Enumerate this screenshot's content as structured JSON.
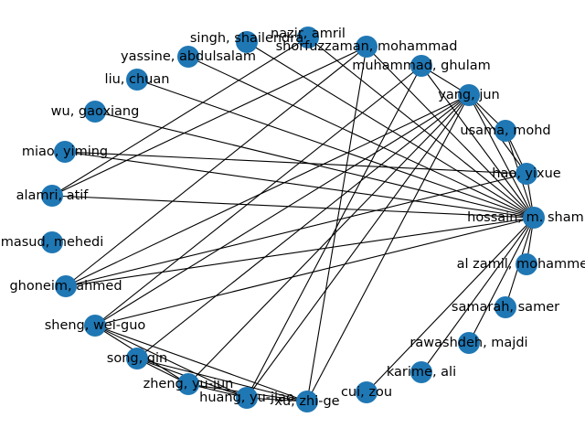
{
  "colors": {
    "node": "#1f77b4",
    "edge": "#000000",
    "background": "#ffffff"
  },
  "chart_data": {
    "type": "network",
    "nodes": [
      {
        "id": "hossain",
        "label": "hossain, m. shamim"
      },
      {
        "id": "hao",
        "label": "hao, yixue"
      },
      {
        "id": "usama",
        "label": "usama, mohd"
      },
      {
        "id": "yang",
        "label": "yang, jun"
      },
      {
        "id": "muhammad",
        "label": "muhammad, ghulam"
      },
      {
        "id": "shorfuzzaman",
        "label": "shorfuzzaman, mohammad"
      },
      {
        "id": "nazir",
        "label": "nazir, amril"
      },
      {
        "id": "singh",
        "label": "singh, shailendra"
      },
      {
        "id": "yassine",
        "label": "yassine, abdulsalam"
      },
      {
        "id": "liu",
        "label": "liu, chuan"
      },
      {
        "id": "wu",
        "label": "wu, gaoxiang"
      },
      {
        "id": "miao",
        "label": "miao, yiming"
      },
      {
        "id": "alamri",
        "label": "alamri, atif"
      },
      {
        "id": "masud",
        "label": "masud, mehedi"
      },
      {
        "id": "ghoneim",
        "label": "ghoneim, ahmed"
      },
      {
        "id": "sheng",
        "label": "sheng, wei-guo"
      },
      {
        "id": "song",
        "label": "song, qin"
      },
      {
        "id": "zheng",
        "label": "zheng, yu-jun"
      },
      {
        "id": "huang",
        "label": "huang, yu-jiao"
      },
      {
        "id": "xu",
        "label": "xu, zhi-ge"
      },
      {
        "id": "cui",
        "label": "cui, zou"
      },
      {
        "id": "karime",
        "label": "karime, ali"
      },
      {
        "id": "rawashdeh",
        "label": "rawashdeh, majdi"
      },
      {
        "id": "samarah",
        "label": "samarah, samer"
      },
      {
        "id": "alzamil",
        "label": "al zamil, mohammed"
      }
    ],
    "edges": [
      [
        "hossain",
        "hao"
      ],
      [
        "hossain",
        "usama"
      ],
      [
        "hossain",
        "yang"
      ],
      [
        "hossain",
        "muhammad"
      ],
      [
        "hossain",
        "shorfuzzaman"
      ],
      [
        "hossain",
        "nazir"
      ],
      [
        "hossain",
        "singh"
      ],
      [
        "hossain",
        "yassine"
      ],
      [
        "hossain",
        "liu"
      ],
      [
        "hossain",
        "wu"
      ],
      [
        "hossain",
        "miao"
      ],
      [
        "hossain",
        "alamri"
      ],
      [
        "hossain",
        "ghoneim"
      ],
      [
        "hossain",
        "sheng"
      ],
      [
        "hossain",
        "cui"
      ],
      [
        "hossain",
        "karime"
      ],
      [
        "hossain",
        "rawashdeh"
      ],
      [
        "hossain",
        "samarah"
      ],
      [
        "hossain",
        "alzamil"
      ],
      [
        "hao",
        "yang"
      ],
      [
        "hao",
        "usama"
      ],
      [
        "hao",
        "ghoneim"
      ],
      [
        "hao",
        "miao"
      ],
      [
        "usama",
        "yang"
      ],
      [
        "yang",
        "muhammad"
      ],
      [
        "yang",
        "ghoneim"
      ],
      [
        "yang",
        "sheng"
      ],
      [
        "yang",
        "song"
      ],
      [
        "yang",
        "zheng"
      ],
      [
        "yang",
        "huang"
      ],
      [
        "yang",
        "xu"
      ],
      [
        "shorfuzzaman",
        "alamri"
      ],
      [
        "shorfuzzaman",
        "ghoneim"
      ],
      [
        "shorfuzzaman",
        "xu"
      ],
      [
        "nazir",
        "alamri"
      ],
      [
        "muhammad",
        "sheng"
      ],
      [
        "muhammad",
        "huang"
      ],
      [
        "sheng",
        "zheng"
      ],
      [
        "sheng",
        "huang"
      ],
      [
        "sheng",
        "xu"
      ],
      [
        "song",
        "zheng"
      ],
      [
        "song",
        "huang"
      ],
      [
        "song",
        "xu"
      ],
      [
        "zheng",
        "huang"
      ],
      [
        "zheng",
        "xu"
      ],
      [
        "huang",
        "xu"
      ]
    ]
  }
}
